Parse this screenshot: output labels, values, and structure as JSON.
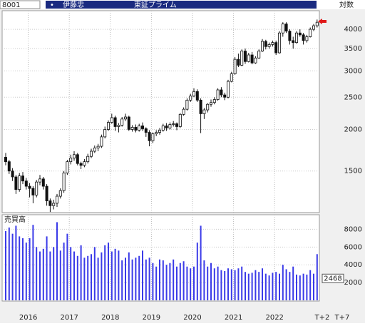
{
  "header": {
    "code": "8001",
    "name": "伊藤忠",
    "market": "東証プライム",
    "scale_mode": "対数"
  },
  "chart_data": {
    "type": "candlestick",
    "categories": [
      null,
      null,
      null,
      null,
      null,
      null,
      null,
      "2016",
      null,
      null,
      null,
      null,
      null,
      null,
      null,
      null,
      null,
      null,
      null,
      "2017",
      null,
      null,
      null,
      null,
      null,
      null,
      null,
      null,
      null,
      null,
      null,
      "2018",
      null,
      null,
      null,
      null,
      null,
      null,
      null,
      null,
      null,
      null,
      null,
      "2019",
      null,
      null,
      null,
      null,
      null,
      null,
      null,
      null,
      null,
      null,
      null,
      "2020",
      null,
      null,
      null,
      null,
      null,
      null,
      null,
      null,
      null,
      null,
      null,
      "2021",
      null,
      null,
      null,
      null,
      null,
      null,
      null,
      null,
      null,
      null,
      null,
      "2022",
      null,
      null,
      null,
      null,
      null,
      null,
      null,
      null,
      null,
      null,
      null,
      null
    ],
    "future_labels": [
      "T+2",
      "T+7"
    ],
    "candles": [
      [
        1650,
        1700,
        1560,
        1600
      ],
      [
        1600,
        1620,
        1470,
        1500
      ],
      [
        1500,
        1530,
        1400,
        1440
      ],
      [
        1440,
        1460,
        1280,
        1320
      ],
      [
        1320,
        1480,
        1300,
        1450
      ],
      [
        1450,
        1490,
        1370,
        1400
      ],
      [
        1400,
        1430,
        1320,
        1350
      ],
      [
        1350,
        1380,
        1250,
        1330
      ],
      [
        1330,
        1350,
        1200,
        1270
      ],
      [
        1270,
        1410,
        1250,
        1390
      ],
      [
        1390,
        1460,
        1360,
        1420
      ],
      [
        1420,
        1440,
        1320,
        1350
      ],
      [
        1350,
        1370,
        1180,
        1220
      ],
      [
        1220,
        1240,
        1130,
        1180
      ],
      [
        1180,
        1230,
        1150,
        1200
      ],
      [
        1200,
        1280,
        1170,
        1260
      ],
      [
        1260,
        1330,
        1240,
        1310
      ],
      [
        1310,
        1500,
        1290,
        1480
      ],
      [
        1480,
        1620,
        1460,
        1600
      ],
      [
        1600,
        1680,
        1570,
        1640
      ],
      [
        1640,
        1720,
        1610,
        1680
      ],
      [
        1680,
        1700,
        1560,
        1580
      ],
      [
        1580,
        1600,
        1520,
        1560
      ],
      [
        1560,
        1630,
        1540,
        1600
      ],
      [
        1600,
        1690,
        1580,
        1660
      ],
      [
        1660,
        1750,
        1640,
        1720
      ],
      [
        1720,
        1790,
        1700,
        1760
      ],
      [
        1760,
        1810,
        1720,
        1780
      ],
      [
        1780,
        1930,
        1760,
        1900
      ],
      [
        1900,
        2040,
        1880,
        2000
      ],
      [
        2000,
        2130,
        1980,
        2100
      ],
      [
        2100,
        2230,
        2080,
        2170
      ],
      [
        2170,
        2200,
        1980,
        2040
      ],
      [
        2040,
        2090,
        1960,
        2060
      ],
      [
        2060,
        2180,
        2040,
        2150
      ],
      [
        2150,
        2230,
        2120,
        2180
      ],
      [
        2180,
        2200,
        1980,
        2000
      ],
      [
        2000,
        2060,
        1970,
        2030
      ],
      [
        2030,
        2070,
        1960,
        1990
      ],
      [
        1990,
        2080,
        1970,
        2050
      ],
      [
        2050,
        2100,
        1980,
        2010
      ],
      [
        2010,
        2030,
        1900,
        1960
      ],
      [
        1960,
        1990,
        1780,
        1850
      ],
      [
        1850,
        1960,
        1820,
        1940
      ],
      [
        1940,
        1990,
        1910,
        1960
      ],
      [
        1960,
        2020,
        1930,
        1990
      ],
      [
        1990,
        2080,
        1970,
        2050
      ],
      [
        2050,
        2090,
        1980,
        2020
      ],
      [
        2020,
        2100,
        2000,
        2070
      ],
      [
        2070,
        2120,
        2040,
        2080
      ],
      [
        2080,
        2100,
        1990,
        2040
      ],
      [
        2040,
        2240,
        2020,
        2220
      ],
      [
        2220,
        2330,
        2200,
        2300
      ],
      [
        2300,
        2480,
        2280,
        2450
      ],
      [
        2450,
        2560,
        2420,
        2520
      ],
      [
        2520,
        2660,
        2500,
        2600
      ],
      [
        2600,
        2640,
        2420,
        2450
      ],
      [
        2450,
        2480,
        1950,
        2230
      ],
      [
        2230,
        2320,
        2150,
        2290
      ],
      [
        2290,
        2400,
        2250,
        2380
      ],
      [
        2380,
        2460,
        2340,
        2410
      ],
      [
        2410,
        2500,
        2380,
        2460
      ],
      [
        2460,
        2660,
        2440,
        2630
      ],
      [
        2630,
        2680,
        2500,
        2540
      ],
      [
        2540,
        2580,
        2450,
        2500
      ],
      [
        2500,
        2820,
        2480,
        2790
      ],
      [
        2790,
        2980,
        2770,
        2940
      ],
      [
        2940,
        3300,
        2920,
        3250
      ],
      [
        3250,
        3380,
        3080,
        3120
      ],
      [
        3120,
        3480,
        3100,
        3440
      ],
      [
        3440,
        3500,
        3150,
        3200
      ],
      [
        3200,
        3400,
        3180,
        3350
      ],
      [
        3350,
        3420,
        3140,
        3170
      ],
      [
        3170,
        3320,
        3150,
        3280
      ],
      [
        3280,
        3480,
        3260,
        3440
      ],
      [
        3440,
        3740,
        3420,
        3680
      ],
      [
        3680,
        3720,
        3480,
        3550
      ],
      [
        3550,
        3650,
        3500,
        3600
      ],
      [
        3600,
        3700,
        3550,
        3650
      ],
      [
        3650,
        3700,
        3350,
        3400
      ],
      [
        3400,
        3950,
        3380,
        3900
      ],
      [
        3900,
        4200,
        3800,
        4150
      ],
      [
        4150,
        4200,
        3900,
        3950
      ],
      [
        3950,
        4000,
        3600,
        3700
      ],
      [
        3700,
        3800,
        3500,
        3650
      ],
      [
        3650,
        3950,
        3620,
        3900
      ],
      [
        3900,
        4000,
        3800,
        3850
      ],
      [
        3850,
        3900,
        3600,
        3700
      ],
      [
        3700,
        3850,
        3650,
        3800
      ],
      [
        3800,
        4050,
        3780,
        4000
      ],
      [
        4000,
        4150,
        3950,
        4100
      ],
      [
        4100,
        4280,
        4050,
        4200
      ]
    ],
    "up_color": "#ffffff",
    "down_color": "#111111",
    "outline_color": "#111111",
    "log_scale": true,
    "grid": true,
    "ylim": [
      1125,
      4550
    ],
    "yticks": [
      1500,
      2000,
      2500,
      3000,
      3500,
      4000
    ],
    "volume": {
      "title": "売買高",
      "color": "#3a3ae8",
      "values": [
        7800,
        8200,
        7500,
        8400,
        7200,
        7000,
        6500,
        7000,
        8500,
        6000,
        5500,
        5800,
        7200,
        5500,
        6000,
        8800,
        5600,
        6500,
        7500,
        6000,
        5500,
        5000,
        6200,
        4800,
        5000,
        5200,
        6000,
        4800,
        5400,
        6200,
        6500,
        5500,
        5800,
        5600,
        4500,
        4800,
        5400,
        4600,
        4800,
        5000,
        5600,
        4600,
        4800,
        4200,
        3800,
        4600,
        4500,
        4000,
        4200,
        4600,
        3800,
        4200,
        4400,
        3800,
        3600,
        3800,
        6500,
        8400,
        4500,
        3800,
        4200,
        3600,
        3800,
        3400,
        3300,
        3600,
        3500,
        3400,
        3600,
        3800,
        3200,
        3000,
        3100,
        3400,
        3200,
        3600,
        3000,
        2800,
        3100,
        3200,
        3000,
        4000,
        3500,
        3200,
        3800,
        2900,
        2800,
        3000,
        2900,
        3400,
        3000,
        5200
      ],
      "ylim": [
        0,
        9400
      ],
      "yticks": [
        2000,
        4000,
        6000,
        8000
      ],
      "marker": 2468
    }
  }
}
